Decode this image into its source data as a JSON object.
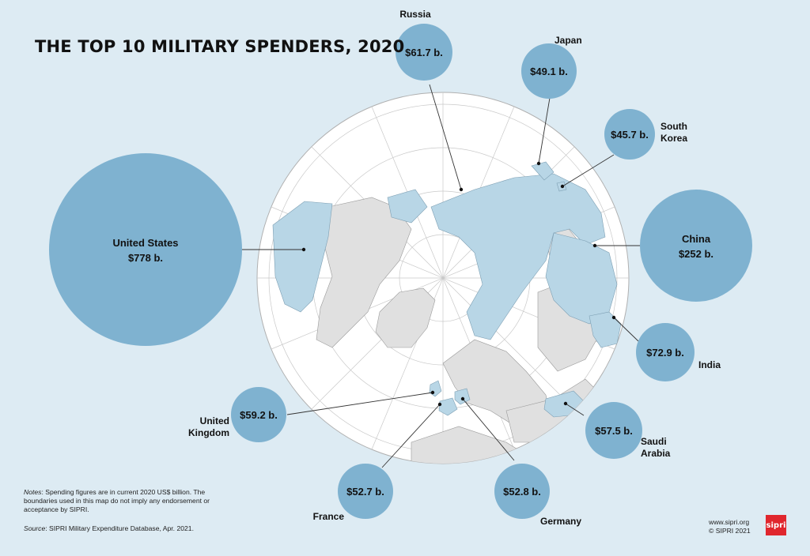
{
  "title": "THE TOP 10 MILITARY SPENDERS, 2020",
  "colors": {
    "background": "#ddebf3",
    "bubble": "#7fb2d0",
    "highlighted_country": "#b8d6e6",
    "other_country": "#e0e0e0",
    "ocean": "#ffffff",
    "logo": "#e0262d"
  },
  "countries": [
    {
      "id": "usa",
      "name_lines": [
        "United States"
      ],
      "amount": "$778 b.",
      "value": 778
    },
    {
      "id": "china",
      "name_lines": [
        "China"
      ],
      "amount": "$252 b.",
      "value": 252
    },
    {
      "id": "india",
      "name_lines": [
        "India"
      ],
      "amount": "$72.9 b.",
      "value": 72.9
    },
    {
      "id": "russia",
      "name_lines": [
        "Russia"
      ],
      "amount": "$61.7 b.",
      "value": 61.7
    },
    {
      "id": "uk",
      "name_lines": [
        "United",
        "Kingdom"
      ],
      "amount": "$59.2 b.",
      "value": 59.2
    },
    {
      "id": "saudi",
      "name_lines": [
        "Saudi",
        "Arabia"
      ],
      "amount": "$57.5 b.",
      "value": 57.5
    },
    {
      "id": "germany",
      "name_lines": [
        "Germany"
      ],
      "amount": "$52.8 b.",
      "value": 52.8
    },
    {
      "id": "france",
      "name_lines": [
        "France"
      ],
      "amount": "$52.7 b.",
      "value": 52.7
    },
    {
      "id": "japan",
      "name_lines": [
        "Japan"
      ],
      "amount": "$49.1 b.",
      "value": 49.1
    },
    {
      "id": "korea",
      "name_lines": [
        "South",
        "Korea"
      ],
      "amount": "$45.7 b.",
      "value": 45.7
    }
  ],
  "notes": {
    "label": "Notes",
    "text": ": Spending figures are in current 2020 US$ billion. The boundaries used in this map do not imply any endorsement or acceptance by SIPRI.",
    "source_label": "Source",
    "source_text": ": SIPRI Military Expenditure Database, Apr. 2021."
  },
  "credit": {
    "url": "www.sipri.org",
    "copyright": "© SIPRI 2021"
  },
  "logo_text": "sipri"
}
